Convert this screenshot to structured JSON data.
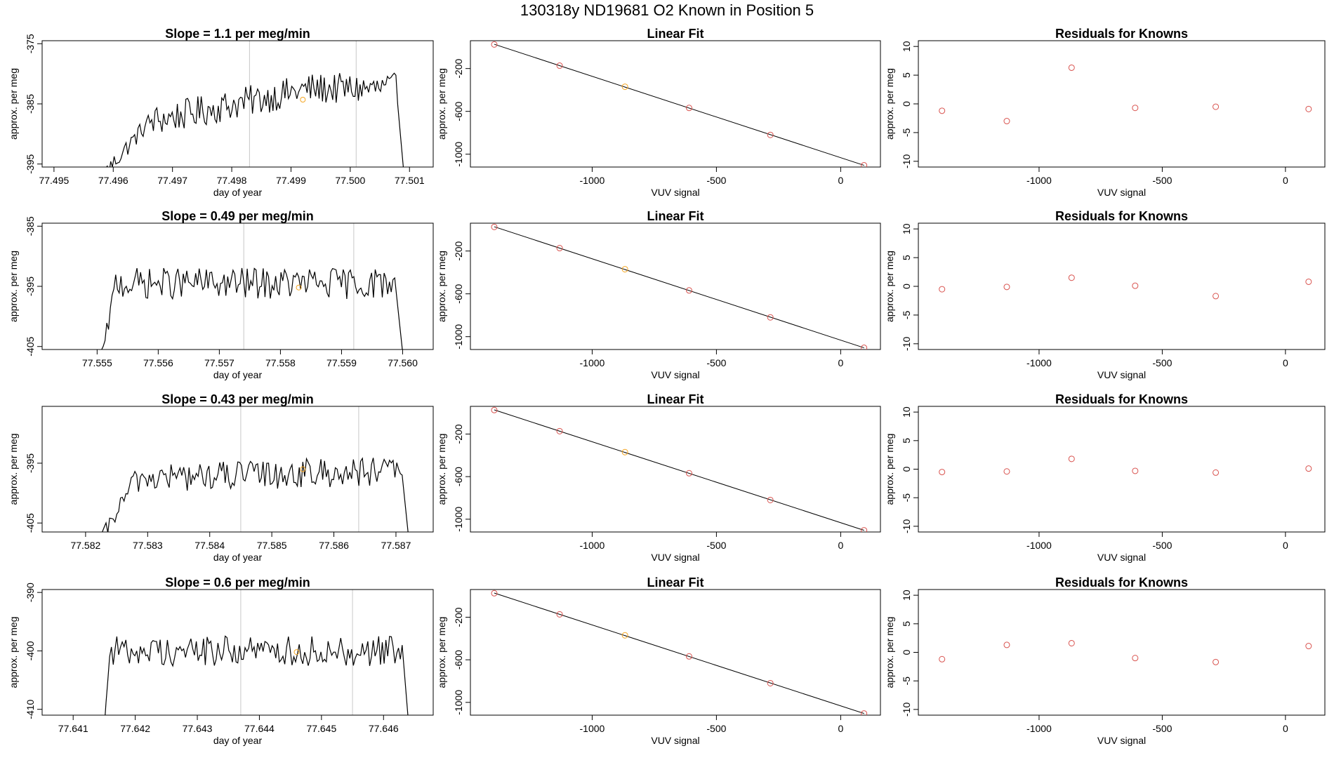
{
  "page": {
    "title": "130318y      ND19681    O2 Known in Position  5"
  },
  "colors": {
    "signal_line": "#000000",
    "window_marker": "#c8c8c8",
    "highlight_point": "#f5a623",
    "residual_point": "#d9534f",
    "fit_line": "#000000"
  },
  "chart_data": [
    {
      "id": "r0-signal",
      "type": "line",
      "title": "Slope =  1.1  per meg/min",
      "xlabel": "day of year",
      "ylabel": "approx. per meg",
      "xlim": [
        77.4948,
        77.5014
      ],
      "ylim": [
        -395.5,
        -374.5
      ],
      "xticks": [
        "77.495",
        "77.496",
        "77.497",
        "77.498",
        "77.499",
        "77.500",
        "77.501"
      ],
      "xtick_values": [
        77.495,
        77.496,
        77.497,
        77.498,
        77.499,
        77.5,
        77.501
      ],
      "yticks": [
        "-375",
        "-385",
        "-395"
      ],
      "ytick_values": [
        -375,
        -385,
        -395
      ],
      "markers_x": [
        77.4983,
        77.5001
      ],
      "highlight": [
        77.4992,
        -384.3
      ],
      "trace": {
        "start": 77.4959,
        "end": 77.5008,
        "drop_end": 77.5009,
        "from": -396,
        "to": -396,
        "ramp_end": 77.4966,
        "level": -388,
        "rise_end": 77.4993,
        "rise_to": -382.5,
        "noise": 2.0,
        "points": 170
      }
    },
    {
      "id": "r0-fit",
      "type": "line",
      "title": "Linear Fit",
      "xlabel": "VUV signal",
      "ylabel": "approx. per meg",
      "xlim": [
        -1490,
        160
      ],
      "ylim": [
        -1120,
        60
      ],
      "xticks": [
        "-1000",
        "-500",
        "0"
      ],
      "xtick_values": [
        -1000,
        -500,
        0
      ],
      "yticks": [
        "-200",
        "-600",
        "-1000"
      ],
      "ytick_values": [
        -200,
        -600,
        -1000
      ],
      "points_x": [
        -1394,
        -1131,
        -868,
        -610,
        -283,
        94
      ],
      "points_y": [
        25,
        -173,
        -370,
        -568,
        -820,
        -1104
      ],
      "highlight_index": 2
    },
    {
      "id": "r0-resid",
      "type": "scatter",
      "title": "Residuals for Knowns",
      "xlabel": "VUV signal",
      "ylabel": "approx. per meg",
      "xlim": [
        -1490,
        160
      ],
      "ylim": [
        -11,
        11
      ],
      "xticks": [
        "-1000",
        "-500",
        "0"
      ],
      "xtick_values": [
        -1000,
        -500,
        0
      ],
      "yticks": [
        "10",
        "5",
        "0",
        "-5",
        "-10"
      ],
      "ytick_values": [
        10,
        5,
        0,
        -5,
        -10
      ],
      "points_x": [
        -1394,
        -1131,
        -868,
        -610,
        -283,
        94
      ],
      "points_y": [
        -1.2,
        -3.0,
        6.3,
        -0.7,
        -0.5,
        -0.9
      ]
    },
    {
      "id": "r1-signal",
      "type": "line",
      "title": "Slope =  0.49  per meg/min",
      "xlabel": "day of year",
      "ylabel": "approx. per meg",
      "xlim": [
        77.5541,
        77.5605
      ],
      "ylim": [
        -405.5,
        -384.5
      ],
      "xticks": [
        "77.555",
        "77.556",
        "77.557",
        "77.558",
        "77.559",
        "77.560"
      ],
      "xtick_values": [
        77.555,
        77.556,
        77.557,
        77.558,
        77.559,
        77.56
      ],
      "yticks": [
        "-385",
        "-395",
        "-405"
      ],
      "ytick_values": [
        -385,
        -395,
        -405
      ],
      "markers_x": [
        77.5574,
        77.5592
      ],
      "highlight": [
        77.5583,
        -395.2
      ],
      "trace": {
        "start": 77.5551,
        "end": 77.5599,
        "drop_end": 77.56,
        "from": -406,
        "to": -406,
        "ramp_end": 77.5553,
        "level": -394.5,
        "rise_end": 77.5598,
        "rise_to": -394.5,
        "noise": 2.0,
        "points": 165
      }
    },
    {
      "id": "r1-fit",
      "type": "line",
      "title": "Linear Fit",
      "xlabel": "VUV signal",
      "ylabel": "approx. per meg",
      "xlim": [
        -1490,
        160
      ],
      "ylim": [
        -1120,
        60
      ],
      "xticks": [
        "-1000",
        "-500",
        "0"
      ],
      "xtick_values": [
        -1000,
        -500,
        0
      ],
      "yticks": [
        "-200",
        "-600",
        "-1000"
      ],
      "ytick_values": [
        -200,
        -600,
        -1000
      ],
      "points_x": [
        -1394,
        -1131,
        -868,
        -610,
        -283,
        94
      ],
      "points_y": [
        25,
        -173,
        -370,
        -568,
        -820,
        -1104
      ],
      "highlight_index": 2
    },
    {
      "id": "r1-resid",
      "type": "scatter",
      "title": "Residuals for Knowns",
      "xlabel": "VUV signal",
      "ylabel": "approx. per meg",
      "xlim": [
        -1490,
        160
      ],
      "ylim": [
        -11,
        11
      ],
      "xticks": [
        "-1000",
        "-500",
        "0"
      ],
      "xtick_values": [
        -1000,
        -500,
        0
      ],
      "yticks": [
        "10",
        "5",
        "0",
        "-5",
        "-10"
      ],
      "ytick_values": [
        10,
        5,
        0,
        -5,
        -10
      ],
      "points_x": [
        -1394,
        -1131,
        -868,
        -610,
        -283,
        94
      ],
      "points_y": [
        -0.5,
        -0.1,
        1.5,
        0.1,
        -1.7,
        0.8
      ]
    },
    {
      "id": "r2-signal",
      "type": "line",
      "title": "Slope =  0.43  per meg/min",
      "xlabel": "day of year",
      "ylabel": "approx. per meg",
      "xlim": [
        77.5813,
        77.5876
      ],
      "ylim": [
        -406.5,
        -385.5
      ],
      "xticks": [
        "77.582",
        "77.583",
        "77.584",
        "77.585",
        "77.586",
        "77.587"
      ],
      "xtick_values": [
        77.582,
        77.583,
        77.584,
        77.585,
        77.586,
        77.587
      ],
      "yticks": [
        "-395",
        "-405"
      ],
      "ytick_values": [
        -395,
        -405
      ],
      "markers_x": [
        77.5845,
        77.5864
      ],
      "highlight": [
        77.5855,
        -396.0
      ],
      "trace": {
        "start": 77.5823,
        "end": 77.5871,
        "drop_end": 77.5872,
        "from": -407,
        "to": -407,
        "ramp_end": 77.5828,
        "level": -397.5,
        "rise_end": 77.5862,
        "rise_to": -396.5,
        "noise": 1.9,
        "points": 165
      }
    },
    {
      "id": "r2-fit",
      "type": "line",
      "title": "Linear Fit",
      "xlabel": "VUV signal",
      "ylabel": "approx. per meg",
      "xlim": [
        -1490,
        160
      ],
      "ylim": [
        -1120,
        60
      ],
      "xticks": [
        "-1000",
        "-500",
        "0"
      ],
      "xtick_values": [
        -1000,
        -500,
        0
      ],
      "yticks": [
        "-200",
        "-600",
        "-1000"
      ],
      "ytick_values": [
        -200,
        -600,
        -1000
      ],
      "points_x": [
        -1394,
        -1131,
        -868,
        -610,
        -283,
        94
      ],
      "points_y": [
        25,
        -173,
        -370,
        -568,
        -820,
        -1104
      ],
      "highlight_index": 2
    },
    {
      "id": "r2-resid",
      "type": "scatter",
      "title": "Residuals for Knowns",
      "xlabel": "VUV signal",
      "ylabel": "approx. per meg",
      "xlim": [
        -1490,
        160
      ],
      "ylim": [
        -11,
        11
      ],
      "xticks": [
        "-1000",
        "-500",
        "0"
      ],
      "xtick_values": [
        -1000,
        -500,
        0
      ],
      "yticks": [
        "10",
        "5",
        "0",
        "-5",
        "-10"
      ],
      "ytick_values": [
        10,
        5,
        0,
        -5,
        -10
      ],
      "points_x": [
        -1394,
        -1131,
        -868,
        -610,
        -283,
        94
      ],
      "points_y": [
        -0.5,
        -0.4,
        1.8,
        -0.3,
        -0.6,
        0.1
      ]
    },
    {
      "id": "r3-signal",
      "type": "line",
      "title": "Slope =  0.6  per meg/min",
      "xlabel": "day of year",
      "ylabel": "approx. per meg",
      "xlim": [
        77.6405,
        77.6468
      ],
      "ylim": [
        -411,
        -389.5
      ],
      "xticks": [
        "77.641",
        "77.642",
        "77.643",
        "77.644",
        "77.645",
        "77.646"
      ],
      "xtick_values": [
        77.641,
        77.642,
        77.643,
        77.644,
        77.645,
        77.646
      ],
      "yticks": [
        "-390",
        "-400",
        "-410"
      ],
      "ytick_values": [
        -390,
        -400,
        -410
      ],
      "markers_x": [
        77.6437,
        77.6455
      ],
      "highlight": [
        77.6446,
        -400.2
      ],
      "trace": {
        "start": 77.6415,
        "end": 77.6463,
        "drop_end": 77.6464,
        "from": -412,
        "to": -412,
        "ramp_end": 77.6416,
        "level": -400,
        "rise_end": 77.6462,
        "rise_to": -400,
        "noise": 2.0,
        "points": 165
      }
    },
    {
      "id": "r3-fit",
      "type": "line",
      "title": "Linear Fit",
      "xlabel": "VUV signal",
      "ylabel": "approx. per meg",
      "xlim": [
        -1490,
        160
      ],
      "ylim": [
        -1120,
        60
      ],
      "xticks": [
        "-1000",
        "-500",
        "0"
      ],
      "xtick_values": [
        -1000,
        -500,
        0
      ],
      "yticks": [
        "-200",
        "-600",
        "-1000"
      ],
      "ytick_values": [
        -200,
        -600,
        -1000
      ],
      "points_x": [
        -1394,
        -1131,
        -868,
        -610,
        -283,
        94
      ],
      "points_y": [
        25,
        -173,
        -370,
        -568,
        -820,
        -1104
      ],
      "highlight_index": 2
    },
    {
      "id": "r3-resid",
      "type": "scatter",
      "title": "Residuals for Knowns",
      "xlabel": "VUV signal",
      "ylabel": "approx. per meg",
      "xlim": [
        -1490,
        160
      ],
      "ylim": [
        -11,
        11
      ],
      "xticks": [
        "-1000",
        "-500",
        "0"
      ],
      "xtick_values": [
        -1000,
        -500,
        0
      ],
      "yticks": [
        "10",
        "5",
        "0",
        "-5",
        "-10"
      ],
      "ytick_values": [
        10,
        5,
        0,
        -5,
        -10
      ],
      "points_x": [
        -1394,
        -1131,
        -868,
        -610,
        -283,
        94
      ],
      "points_y": [
        -1.2,
        1.3,
        1.6,
        -1.0,
        -1.7,
        1.1
      ]
    }
  ]
}
